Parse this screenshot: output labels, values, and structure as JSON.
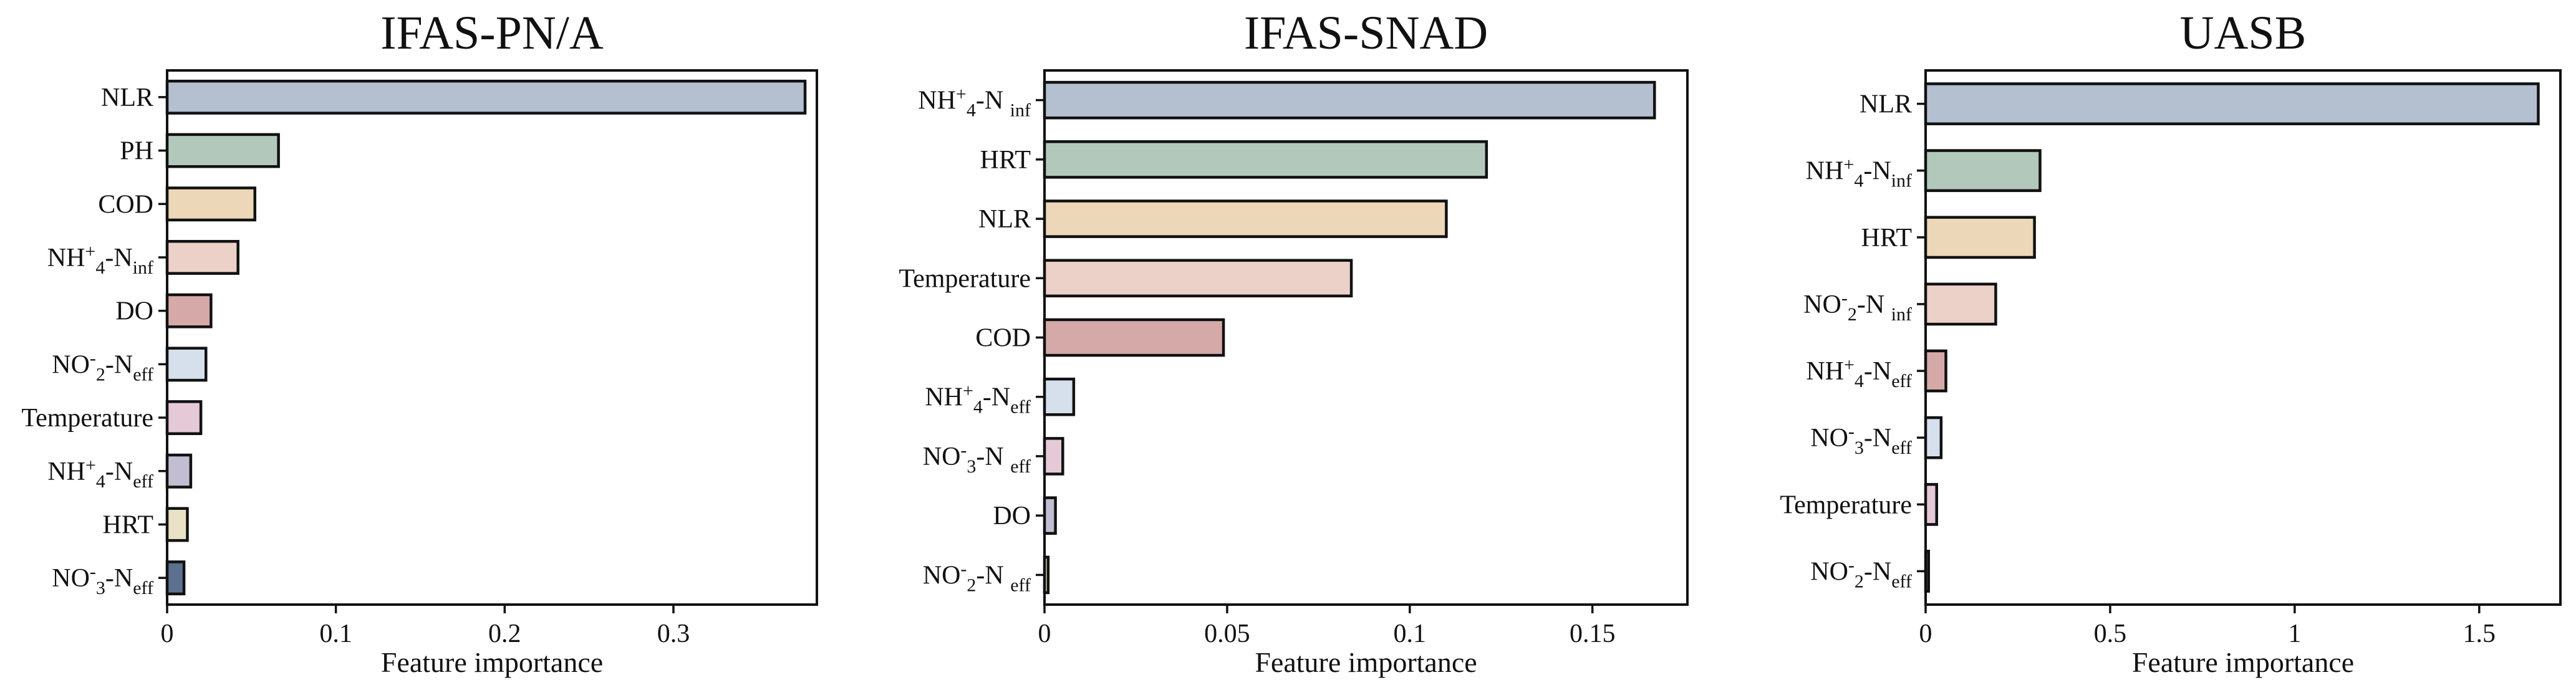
{
  "chart_data": [
    {
      "type": "bar",
      "orientation": "horizontal",
      "title": "IFAS-PN/A",
      "xlabel": "Feature importance",
      "ylabel": "",
      "xlim": [
        0,
        0.385
      ],
      "xticks": [
        0,
        0.1,
        0.2,
        0.3
      ],
      "xtick_labels": [
        "0",
        "0.1",
        "0.2",
        "0.3"
      ],
      "categories": [
        {
          "base": "NLR"
        },
        {
          "base": "PH"
        },
        {
          "base": "COD"
        },
        {
          "base": "NH",
          "sub1": "4",
          "sup": "+",
          "mid": "-N",
          "sub2": "inf"
        },
        {
          "base": "DO"
        },
        {
          "base": "NO",
          "sub1": "2",
          "sup": "-",
          "mid": "-N",
          "sub2": "eff"
        },
        {
          "base": "Temperature"
        },
        {
          "base": "NH",
          "sub1": "4",
          "sup": "+",
          "mid": "-N",
          "sub2": "eff"
        },
        {
          "base": "HRT"
        },
        {
          "base": "NO",
          "sub1": "3",
          "sup": "-",
          "mid": "-N",
          "sub2": "eff"
        }
      ],
      "values": [
        0.378,
        0.066,
        0.052,
        0.042,
        0.026,
        0.023,
        0.02,
        0.014,
        0.012,
        0.01
      ],
      "colors": [
        "#b4bfd0",
        "#b2c8bb",
        "#ecd7b8",
        "#ecd1c8",
        "#d6a9a9",
        "#d6e0ec",
        "#e6c9d6",
        "#c2bdd0",
        "#e9e2c4",
        "#5d708e"
      ],
      "legend": "none",
      "grid": false
    },
    {
      "type": "bar",
      "orientation": "horizontal",
      "title": "IFAS-SNAD",
      "xlabel": "Feature importance",
      "ylabel": "",
      "xlim": [
        0,
        0.176
      ],
      "xticks": [
        0,
        0.05,
        0.1,
        0.15
      ],
      "xtick_labels": [
        "0",
        "0.05",
        "0.1",
        "0.15"
      ],
      "categories": [
        {
          "base": "NH",
          "sub1": "4",
          "sup": "+",
          "mid": "-N ",
          "sub2": "inf"
        },
        {
          "base": "HRT"
        },
        {
          "base": "NLR"
        },
        {
          "base": "Temperature"
        },
        {
          "base": "COD"
        },
        {
          "base": "NH",
          "sub1": "4",
          "sup": "+",
          "mid": "-N",
          "sub2": "eff"
        },
        {
          "base": "NO",
          "sub1": "3",
          "sup": "-",
          "mid": "-N ",
          "sub2": "eff"
        },
        {
          "base": "DO"
        },
        {
          "base": "NO",
          "sub1": "2",
          "sup": "-",
          "mid": "-N ",
          "sub2": "eff"
        }
      ],
      "values": [
        0.167,
        0.121,
        0.11,
        0.084,
        0.049,
        0.008,
        0.005,
        0.003,
        0.001
      ],
      "colors": [
        "#b4bfd0",
        "#b2c8bb",
        "#ecd7b8",
        "#ecd1c8",
        "#d6a9a9",
        "#d6e0ec",
        "#e6c9d6",
        "#c2bdd0",
        "#e9e2c4"
      ],
      "legend": "none",
      "grid": false
    },
    {
      "type": "bar",
      "orientation": "horizontal",
      "title": "UASB",
      "xlabel": "Feature importance",
      "ylabel": "",
      "xlim": [
        0,
        1.72
      ],
      "xticks": [
        0,
        0.5,
        1,
        1.5
      ],
      "xtick_labels": [
        "0",
        "0.5",
        "1",
        "1.5"
      ],
      "categories": [
        {
          "base": "NLR"
        },
        {
          "base": "NH",
          "sub1": "4",
          "sup": "+",
          "mid": "-N",
          "sub2": "inf"
        },
        {
          "base": "HRT"
        },
        {
          "base": "NO",
          "sub1": "2",
          "sup": "-",
          "mid": "-N ",
          "sub2": "inf"
        },
        {
          "base": "NH",
          "sub1": "4",
          "sup": "+",
          "mid": "-N",
          "sub2": "eff"
        },
        {
          "base": "NO",
          "sub1": "3",
          "sup": "-",
          "mid": "-N",
          "sub2": "eff"
        },
        {
          "base": "Temperature"
        },
        {
          "base": "NO",
          "sub1": "2",
          "sup": "-",
          "mid": "-N",
          "sub2": "eff"
        }
      ],
      "values": [
        1.66,
        0.31,
        0.295,
        0.19,
        0.055,
        0.042,
        0.03,
        0.008
      ],
      "colors": [
        "#b4bfd0",
        "#b2c8bb",
        "#ecd7b8",
        "#ecd1c8",
        "#d6a9a9",
        "#d6e0ec",
        "#e6c9d6",
        "#c2bdd0"
      ],
      "legend": "none",
      "grid": false
    }
  ]
}
